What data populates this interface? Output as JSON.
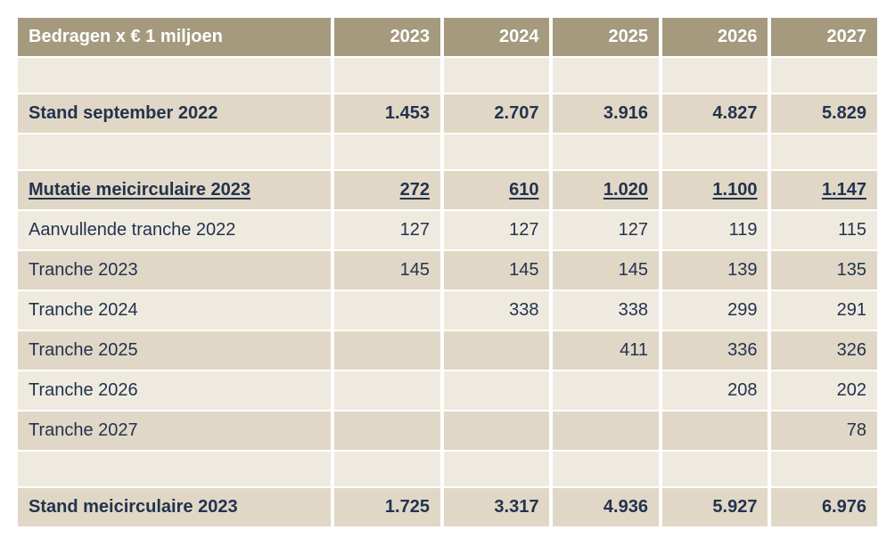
{
  "table": {
    "header_bg": "#a59a7e",
    "header_fg": "#ffffff",
    "row_alt_a": "#efeae0",
    "row_alt_b": "#e0d7c6",
    "text_color": "#23334d",
    "fontsize_header": 20,
    "fontsize_cell": 20,
    "column_widths": {
      "label": 350,
      "number": 118
    },
    "columns": [
      {
        "key": "label",
        "header": "Bedragen x € 1 miljoen",
        "align": "left"
      },
      {
        "key": "y2023",
        "header": "2023",
        "align": "right"
      },
      {
        "key": "y2024",
        "header": "2024",
        "align": "right"
      },
      {
        "key": "y2025",
        "header": "2025",
        "align": "right"
      },
      {
        "key": "y2026",
        "header": "2026",
        "align": "right"
      },
      {
        "key": "y2027",
        "header": "2027",
        "align": "right"
      }
    ],
    "rows": [
      {
        "type": "spacer"
      },
      {
        "type": "bold",
        "label": "Stand september 2022",
        "y2023": "1.453",
        "y2024": "2.707",
        "y2025": "3.916",
        "y2026": "4.827",
        "y2027": "5.829"
      },
      {
        "type": "spacer"
      },
      {
        "type": "bold underline",
        "label": "Mutatie meicirculaire 2023",
        "y2023": "272",
        "y2024": "610",
        "y2025": "1.020",
        "y2026": "1.100",
        "y2027": "1.147"
      },
      {
        "type": "normal",
        "label": "Aanvullende tranche 2022",
        "y2023": "127",
        "y2024": "127",
        "y2025": "127",
        "y2026": "119",
        "y2027": "115"
      },
      {
        "type": "normal",
        "label": "Tranche 2023",
        "y2023": "145",
        "y2024": "145",
        "y2025": "145",
        "y2026": "139",
        "y2027": "135"
      },
      {
        "type": "normal",
        "label": "Tranche 2024",
        "y2023": "",
        "y2024": "338",
        "y2025": "338",
        "y2026": "299",
        "y2027": "291"
      },
      {
        "type": "normal",
        "label": "Tranche 2025",
        "y2023": "",
        "y2024": "",
        "y2025": "411",
        "y2026": "336",
        "y2027": "326"
      },
      {
        "type": "normal",
        "label": "Tranche 2026",
        "y2023": "",
        "y2024": "",
        "y2025": "",
        "y2026": "208",
        "y2027": "202"
      },
      {
        "type": "normal",
        "label": "Tranche 2027",
        "y2023": "",
        "y2024": "",
        "y2025": "",
        "y2026": "",
        "y2027": "78"
      },
      {
        "type": "spacer"
      },
      {
        "type": "bold",
        "label": "Stand meicirculaire 2023",
        "y2023": "1.725",
        "y2024": "3.317",
        "y2025": "4.936",
        "y2026": "5.927",
        "y2027": "6.976"
      }
    ]
  }
}
